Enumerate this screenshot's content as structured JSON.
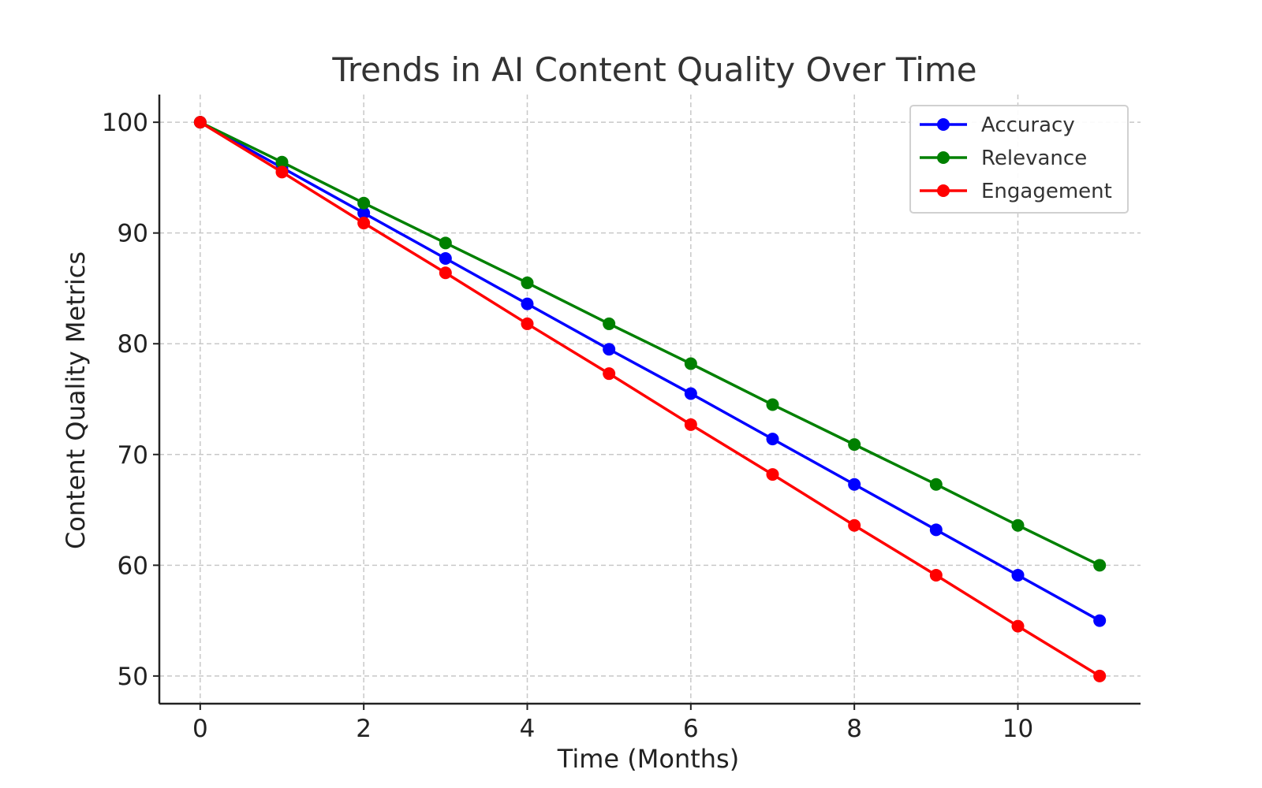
{
  "chart_data": {
    "type": "line",
    "title": "Trends in AI Content Quality Over Time",
    "xlabel": "Time (Months)",
    "ylabel": "Content Quality Metrics",
    "x": [
      0,
      1,
      2,
      3,
      4,
      5,
      6,
      7,
      8,
      9,
      10,
      11
    ],
    "xlim": [
      -0.5,
      11.5
    ],
    "ylim": [
      47.5,
      102.5
    ],
    "xticks": [
      0,
      2,
      4,
      6,
      8,
      10
    ],
    "yticks": [
      50,
      60,
      70,
      80,
      90,
      100
    ],
    "grid": true,
    "grid_style": "dashed",
    "legend_position": "top-right",
    "series": [
      {
        "name": "Accuracy",
        "color": "#0000ff",
        "values": [
          100,
          95.9,
          91.8,
          87.7,
          83.6,
          79.5,
          75.5,
          71.4,
          67.3,
          63.2,
          59.1,
          55.0
        ]
      },
      {
        "name": "Relevance",
        "color": "#008000",
        "values": [
          100,
          96.4,
          92.7,
          89.1,
          85.5,
          81.8,
          78.2,
          74.5,
          70.9,
          67.3,
          63.6,
          60.0
        ]
      },
      {
        "name": "Engagement",
        "color": "#ff0000",
        "values": [
          100,
          95.5,
          90.9,
          86.4,
          81.8,
          77.3,
          72.7,
          68.2,
          63.6,
          59.1,
          54.5,
          50.0
        ]
      }
    ]
  }
}
